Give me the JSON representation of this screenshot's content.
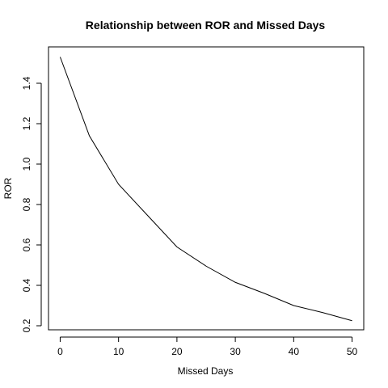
{
  "chart_data": {
    "type": "line",
    "title": "Relationship between ROR and Missed Days",
    "xlabel": "Missed Days",
    "ylabel": "ROR",
    "xlim": [
      -2,
      52
    ],
    "ylim": [
      0.18,
      1.58
    ],
    "xticks": [
      0,
      10,
      20,
      30,
      40,
      50
    ],
    "yticks": [
      0.2,
      0.4,
      0.6,
      0.8,
      1.0,
      1.2,
      1.4
    ],
    "xtick_labels": [
      "0",
      "10",
      "20",
      "30",
      "40",
      "50"
    ],
    "ytick_labels": [
      "0.2",
      "0.4",
      "0.6",
      "0.8",
      "1.0",
      "1.2",
      "1.4"
    ],
    "grid": false,
    "x": [
      0,
      5,
      10,
      15,
      20,
      25,
      30,
      35,
      40,
      45,
      50
    ],
    "series": [
      {
        "values": [
          1.53,
          1.14,
          0.9,
          0.745,
          0.59,
          0.495,
          0.415,
          0.36,
          0.3,
          0.265,
          0.225
        ],
        "color": "#000000"
      }
    ]
  }
}
